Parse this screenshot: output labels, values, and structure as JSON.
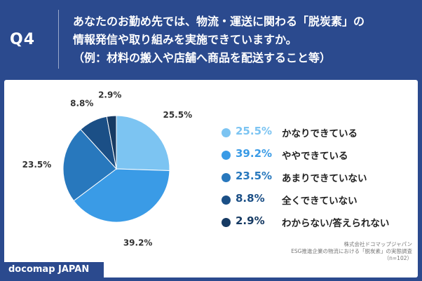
{
  "header": {
    "q_label": "Q4",
    "question_line1": "あなたのお勤め先では、物流・運送に関わる「脱炭素」の",
    "question_line2": "情報発信や取り組みを実施できていますか。",
    "question_line3": "（例：材料の搬入や店舗へ商品を配送すること等）"
  },
  "chart_data": {
    "type": "pie",
    "categories": [
      "かなりできている",
      "ややできている",
      "あまりできていない",
      "全くできていない",
      "わからない/答えられない"
    ],
    "values": [
      25.5,
      39.2,
      23.5,
      8.8,
      2.9
    ],
    "value_labels": [
      "25.5%",
      "39.2%",
      "23.5%",
      "8.8%",
      "2.9%"
    ],
    "colors": [
      "#7cc4f2",
      "#3a9be6",
      "#2878bd",
      "#1b4f86",
      "#163a63"
    ],
    "legend_placement": "right"
  },
  "footer": {
    "brand": "docomap JAPAN",
    "source_line1": "株式会社ドコマップジャパン",
    "source_line2": "ESG推進企業の物流における「脱炭素」の実態調査",
    "source_line3": "（n=102）"
  }
}
